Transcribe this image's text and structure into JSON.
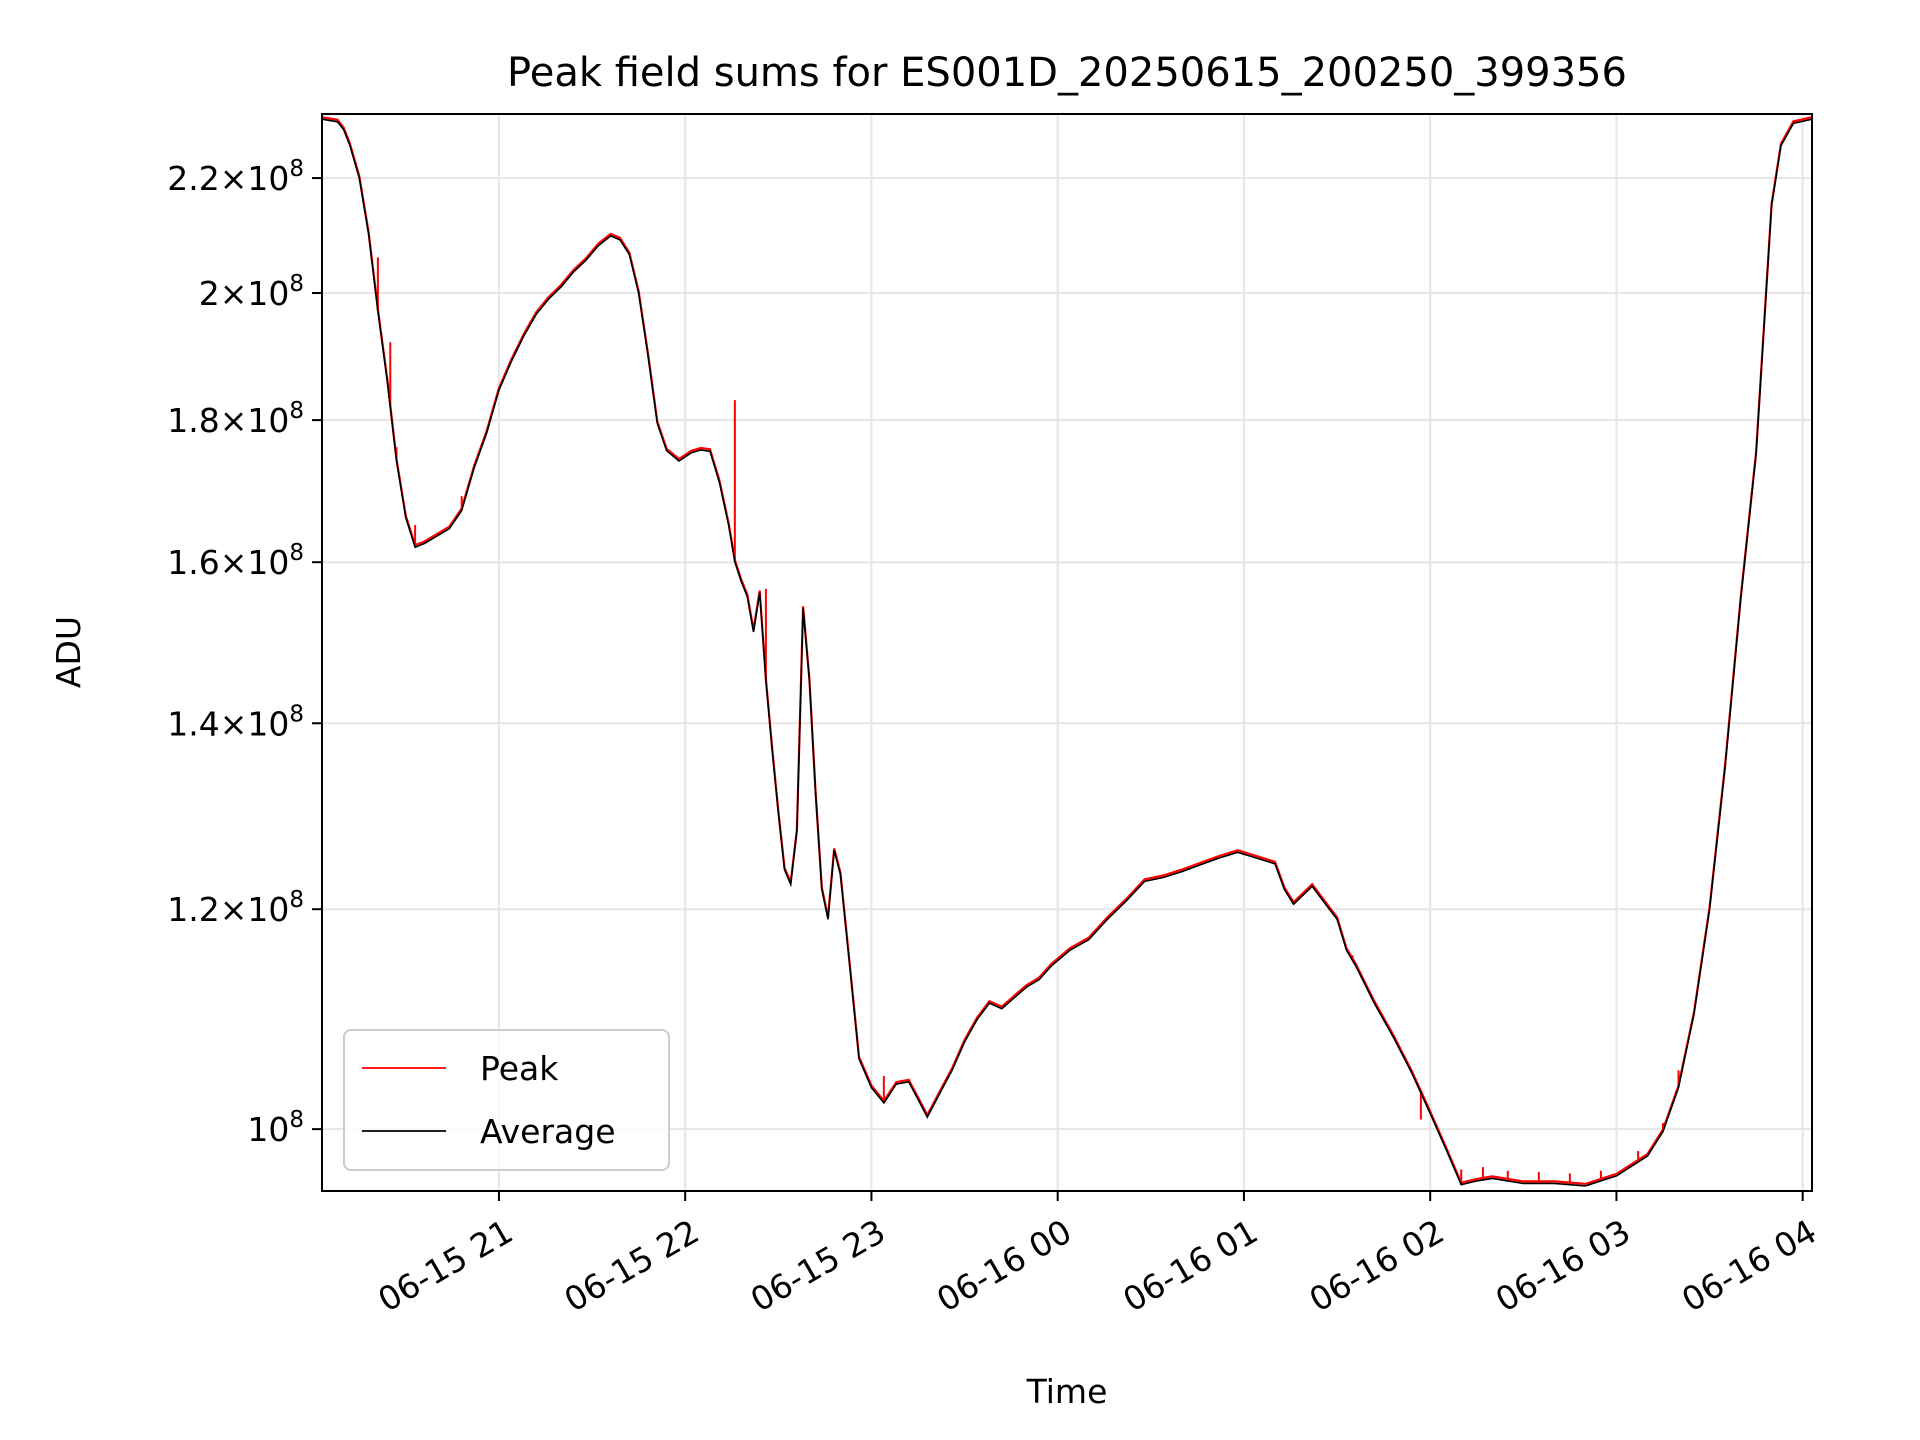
{
  "chart_data": {
    "type": "line",
    "title": "Peak field sums for ES001D_20250615_200250_399356",
    "xlabel": "Time",
    "ylabel": "ADU",
    "yscale": "log",
    "ylim": [
      95000000,
      232000000
    ],
    "xlim": [
      "2025-06-15 20:03",
      "2025-06-16 04:03"
    ],
    "grid": true,
    "legend_position": "lower-left",
    "x_ticks": [
      {
        "label": "06-15 21",
        "t": "2025-06-15 21:00"
      },
      {
        "label": "06-15 22",
        "t": "2025-06-15 22:00"
      },
      {
        "label": "06-15 23",
        "t": "2025-06-15 23:00"
      },
      {
        "label": "06-16 00",
        "t": "2025-06-16 00:00"
      },
      {
        "label": "06-16 01",
        "t": "2025-06-16 01:00"
      },
      {
        "label": "06-16 02",
        "t": "2025-06-16 02:00"
      },
      {
        "label": "06-16 03",
        "t": "2025-06-16 03:00"
      },
      {
        "label": "06-16 04",
        "t": "2025-06-16 04:00"
      }
    ],
    "y_ticks": [
      {
        "mantissa": "",
        "exp": "8",
        "value": 100000000
      },
      {
        "mantissa": "1.2",
        "exp": "8",
        "value": 120000000
      },
      {
        "mantissa": "1.4",
        "exp": "8",
        "value": 140000000
      },
      {
        "mantissa": "1.6",
        "exp": "8",
        "value": 160000000
      },
      {
        "mantissa": "1.8",
        "exp": "8",
        "value": 180000000
      },
      {
        "mantissa": "2",
        "exp": "8",
        "value": 200000000
      },
      {
        "mantissa": "2.2",
        "exp": "8",
        "value": 220000000
      }
    ],
    "series": [
      {
        "name": "Average",
        "color": "#000000",
        "x": [
          "2025-06-15 20:03",
          "2025-06-15 20:08",
          "2025-06-15 20:10",
          "2025-06-15 20:12",
          "2025-06-15 20:15",
          "2025-06-15 20:18",
          "2025-06-15 20:21",
          "2025-06-15 20:24",
          "2025-06-15 20:27",
          "2025-06-15 20:30",
          "2025-06-15 20:33",
          "2025-06-15 20:36",
          "2025-06-15 20:40",
          "2025-06-15 20:44",
          "2025-06-15 20:48",
          "2025-06-15 20:52",
          "2025-06-15 20:56",
          "2025-06-15 21:00",
          "2025-06-15 21:04",
          "2025-06-15 21:08",
          "2025-06-15 21:12",
          "2025-06-15 21:16",
          "2025-06-15 21:20",
          "2025-06-15 21:24",
          "2025-06-15 21:28",
          "2025-06-15 21:32",
          "2025-06-15 21:36",
          "2025-06-15 21:39",
          "2025-06-15 21:42",
          "2025-06-15 21:45",
          "2025-06-15 21:48",
          "2025-06-15 21:51",
          "2025-06-15 21:54",
          "2025-06-15 21:58",
          "2025-06-15 22:02",
          "2025-06-15 22:05",
          "2025-06-15 22:08",
          "2025-06-15 22:11",
          "2025-06-15 22:14",
          "2025-06-15 22:16",
          "2025-06-15 22:18",
          "2025-06-15 22:20",
          "2025-06-15 22:22",
          "2025-06-15 22:24",
          "2025-06-15 22:26",
          "2025-06-15 22:28",
          "2025-06-15 22:30",
          "2025-06-15 22:32",
          "2025-06-15 22:34",
          "2025-06-15 22:36",
          "2025-06-15 22:38",
          "2025-06-15 22:40",
          "2025-06-15 22:42",
          "2025-06-15 22:44",
          "2025-06-15 22:46",
          "2025-06-15 22:48",
          "2025-06-15 22:50",
          "2025-06-15 22:53",
          "2025-06-15 22:56",
          "2025-06-15 23:00",
          "2025-06-15 23:04",
          "2025-06-15 23:08",
          "2025-06-15 23:12",
          "2025-06-15 23:15",
          "2025-06-15 23:18",
          "2025-06-15 23:22",
          "2025-06-15 23:26",
          "2025-06-15 23:30",
          "2025-06-15 23:34",
          "2025-06-15 23:38",
          "2025-06-15 23:42",
          "2025-06-15 23:46",
          "2025-06-15 23:50",
          "2025-06-15 23:54",
          "2025-06-15 23:58",
          "2025-06-16 00:04",
          "2025-06-16 00:10",
          "2025-06-16 00:16",
          "2025-06-16 00:22",
          "2025-06-16 00:28",
          "2025-06-16 00:34",
          "2025-06-16 00:40",
          "2025-06-16 00:46",
          "2025-06-16 00:52",
          "2025-06-16 00:58",
          "2025-06-16 01:04",
          "2025-06-16 01:10",
          "2025-06-16 01:13",
          "2025-06-16 01:16",
          "2025-06-16 01:22",
          "2025-06-16 01:27",
          "2025-06-16 01:30",
          "2025-06-16 01:33",
          "2025-06-16 01:36",
          "2025-06-16 01:42",
          "2025-06-16 01:48",
          "2025-06-16 01:54",
          "2025-06-16 02:00",
          "2025-06-16 02:05",
          "2025-06-16 02:10",
          "2025-06-16 02:15",
          "2025-06-16 02:20",
          "2025-06-16 02:30",
          "2025-06-16 02:40",
          "2025-06-16 02:50",
          "2025-06-16 02:55",
          "2025-06-16 03:00",
          "2025-06-16 03:05",
          "2025-06-16 03:10",
          "2025-06-16 03:15",
          "2025-06-16 03:20",
          "2025-06-16 03:25",
          "2025-06-16 03:30",
          "2025-06-16 03:35",
          "2025-06-16 03:40",
          "2025-06-16 03:45",
          "2025-06-16 03:48",
          "2025-06-16 03:50",
          "2025-06-16 03:53",
          "2025-06-16 03:57",
          "2025-06-16 04:03"
        ],
        "y": [
          231000000,
          230500000,
          229000000,
          226000000,
          220000000,
          210000000,
          197000000,
          186000000,
          174000000,
          166000000,
          162000000,
          162500000,
          163500000,
          164500000,
          167000000,
          173000000,
          178000000,
          184500000,
          189000000,
          193000000,
          196500000,
          199000000,
          201000000,
          203500000,
          205500000,
          208000000,
          209700000,
          209000000,
          206500000,
          200000000,
          190000000,
          179500000,
          175500000,
          174000000,
          175200000,
          175600000,
          175400000,
          171000000,
          165000000,
          160000000,
          157500000,
          155500000,
          151000000,
          156000000,
          145000000,
          137000000,
          130000000,
          124000000,
          122500000,
          128000000,
          154000000,
          145000000,
          132000000,
          122000000,
          119000000,
          126000000,
          123500000,
          114500000,
          106000000,
          103500000,
          102200000,
          103800000,
          104000000,
          102500000,
          101000000,
          103000000,
          105000000,
          107500000,
          109500000,
          111000000,
          110500000,
          111500000,
          112500000,
          113200000,
          114500000,
          116000000,
          117000000,
          119000000,
          120800000,
          122800000,
          123200000,
          123800000,
          124500000,
          125200000,
          125800000,
          125200000,
          124600000,
          122000000,
          120500000,
          122300000,
          120200000,
          119000000,
          116000000,
          114500000,
          111000000,
          108000000,
          104800000,
          101300000,
          98400000,
          95500000,
          95800000,
          96000000,
          95600000,
          95600000,
          95400000,
          95800000,
          96200000,
          97000000,
          97800000,
          99800000,
          103500000,
          110000000,
          120000000,
          135000000,
          155000000,
          175000000,
          198000000,
          215000000,
          226000000,
          230200000,
          231000000
        ]
      },
      {
        "name": "Peak",
        "color": "#ff0000",
        "spikes": [
          {
            "t": "2025-06-15 20:18",
            "peak": 210000000
          },
          {
            "t": "2025-06-15 20:21",
            "peak": 206000000
          },
          {
            "t": "2025-06-15 20:25",
            "peak": 192000000
          },
          {
            "t": "2025-06-15 20:27",
            "peak": 176000000
          },
          {
            "t": "2025-06-15 20:33",
            "peak": 165000000
          },
          {
            "t": "2025-06-15 20:48",
            "peak": 169000000
          },
          {
            "t": "2025-06-15 22:16",
            "peak": 183000000
          },
          {
            "t": "2025-06-15 22:26",
            "peak": 156500000
          },
          {
            "t": "2025-06-15 23:04",
            "peak": 104500000
          },
          {
            "t": "2025-06-16 01:35",
            "peak": 115500000
          },
          {
            "t": "2025-06-16 01:57",
            "peak": 100800000
          },
          {
            "t": "2025-06-16 02:10",
            "peak": 96700000
          },
          {
            "t": "2025-06-16 02:17",
            "peak": 96900000
          },
          {
            "t": "2025-06-16 02:25",
            "peak": 96600000
          },
          {
            "t": "2025-06-16 02:35",
            "peak": 96500000
          },
          {
            "t": "2025-06-16 02:45",
            "peak": 96400000
          },
          {
            "t": "2025-06-16 02:55",
            "peak": 96600000
          },
          {
            "t": "2025-06-16 03:07",
            "peak": 98200000
          },
          {
            "t": "2025-06-16 03:15",
            "peak": 100500000
          },
          {
            "t": "2025-06-16 03:20",
            "peak": 105000000
          },
          {
            "t": "2025-06-16 03:35",
            "peak": 135500000
          }
        ]
      }
    ]
  }
}
